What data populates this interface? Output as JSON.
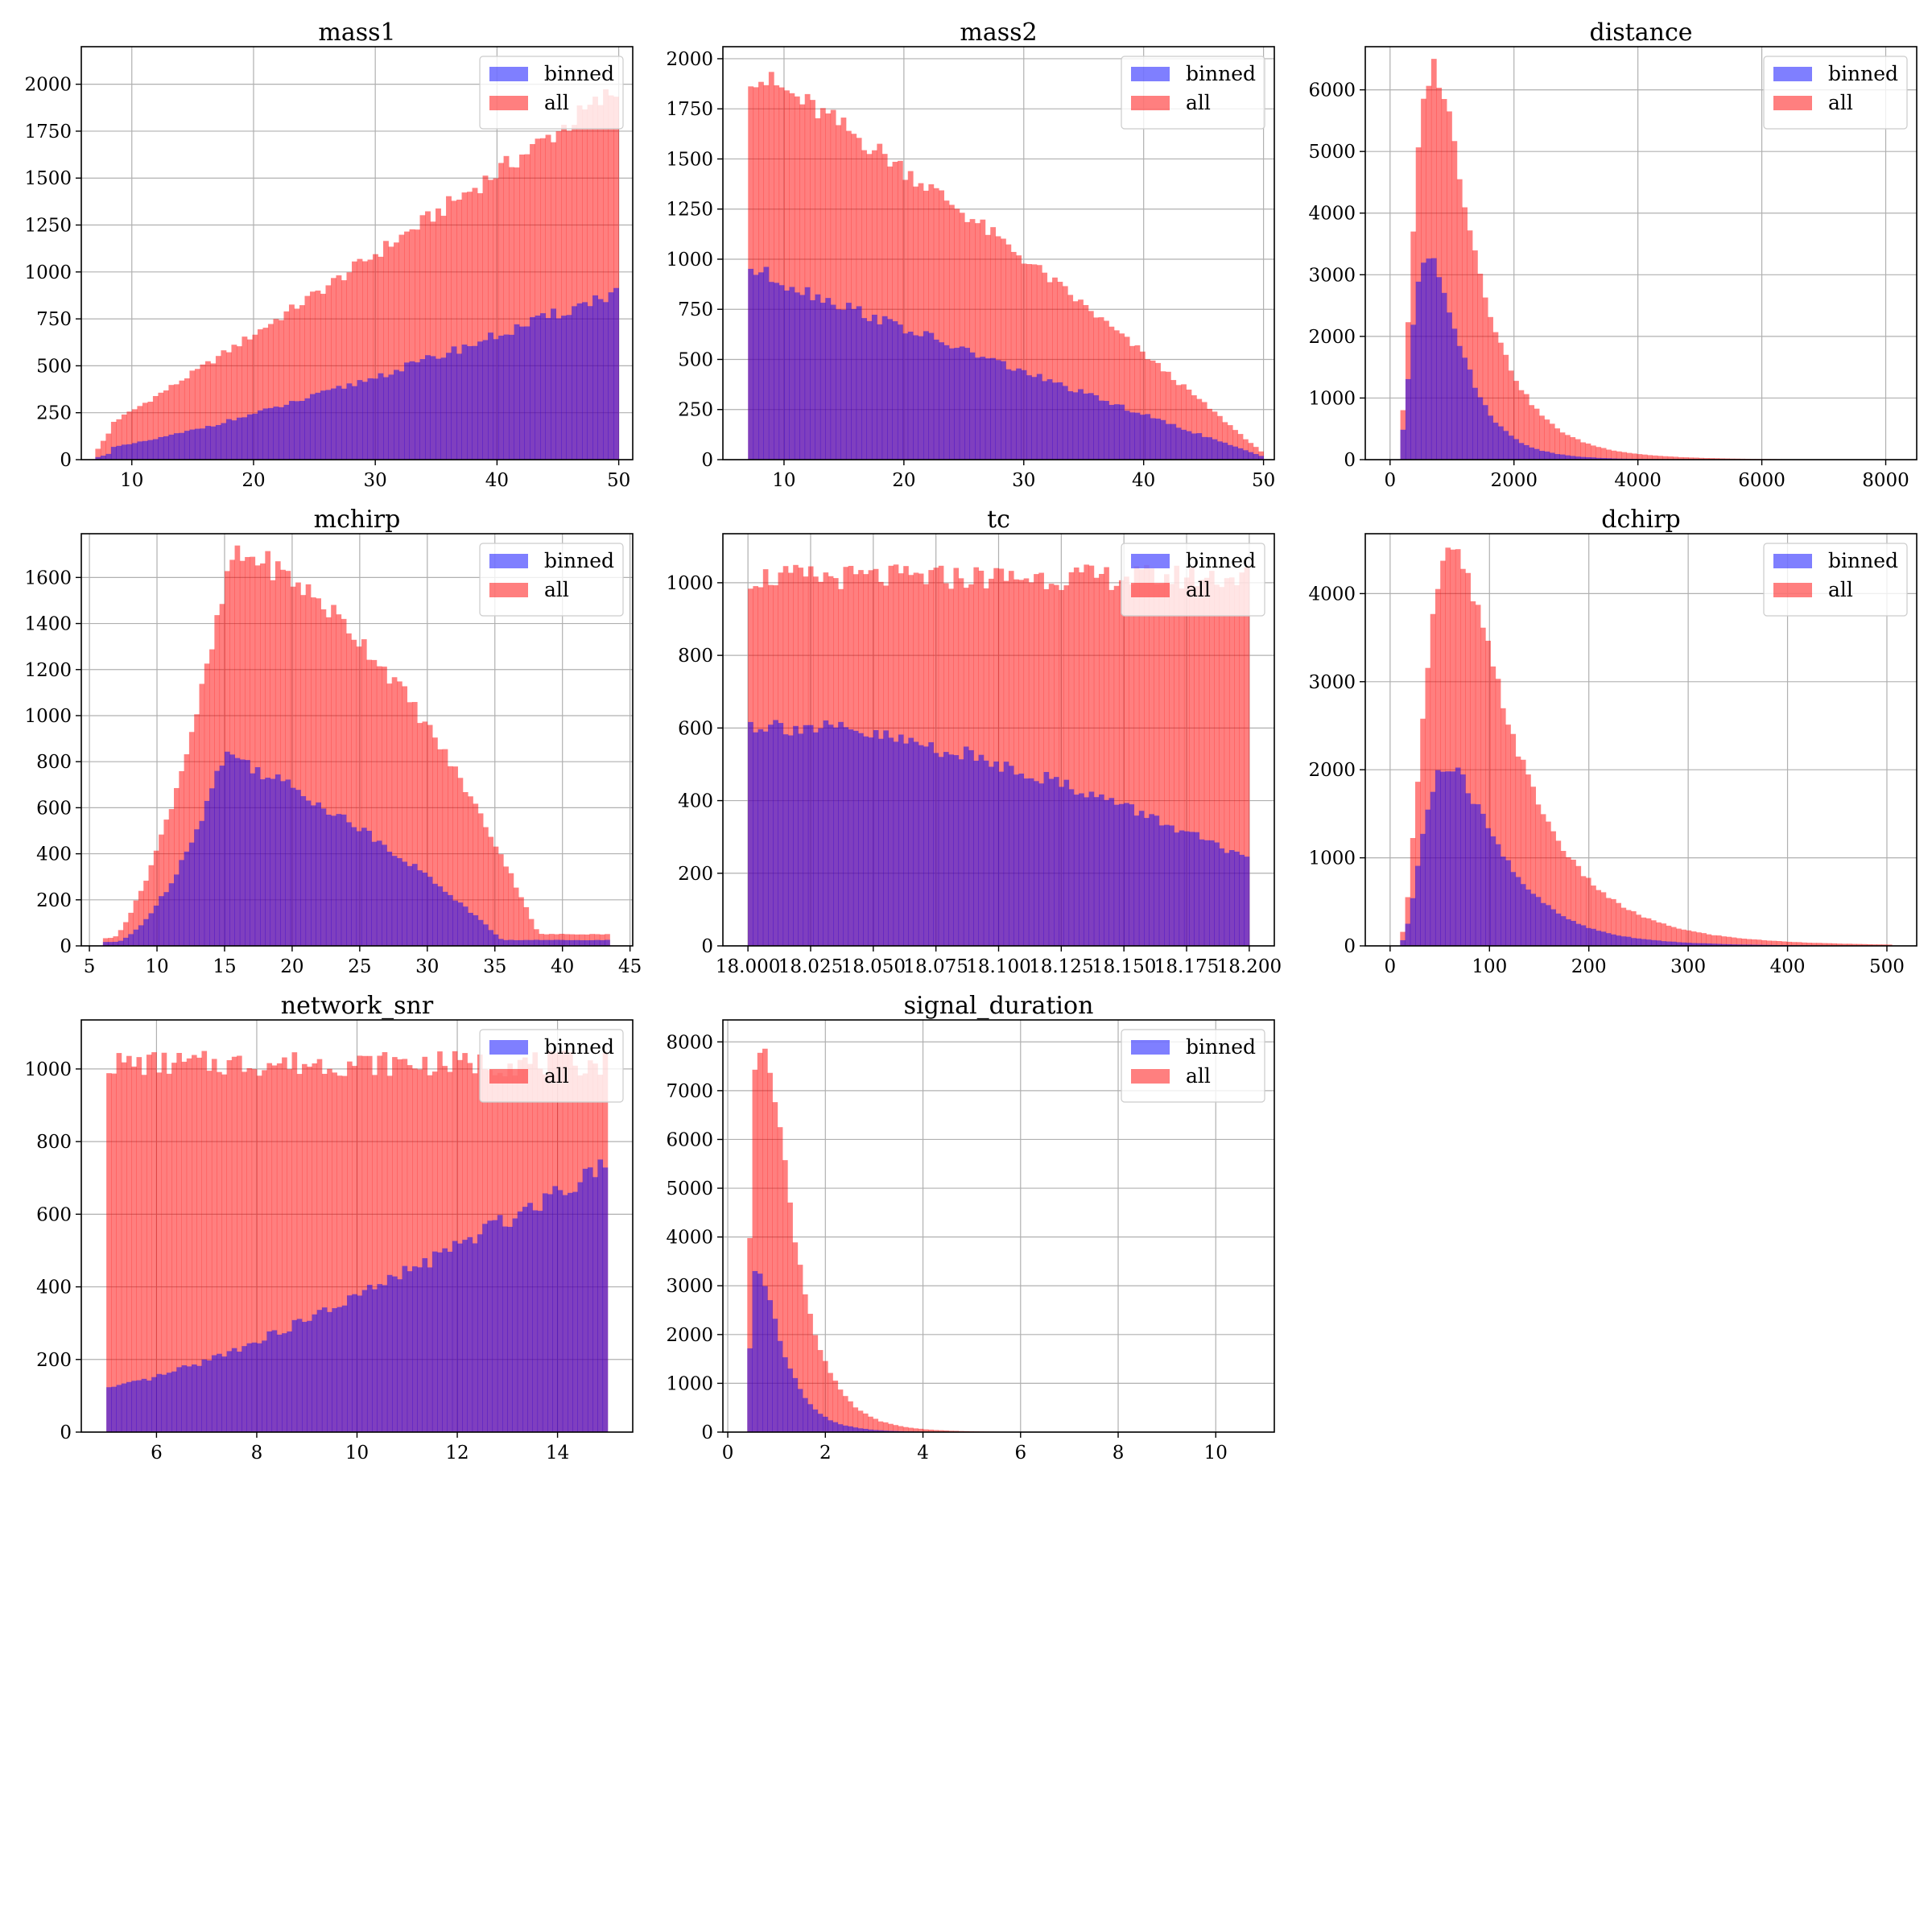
{
  "figure": {
    "legend_labels": [
      "binned",
      "all"
    ],
    "legend_placement": "upper-right",
    "grid": true,
    "colors": {
      "binned": "#0000ff",
      "all": "#ff0000",
      "overlap": "#c03c7c",
      "grid": "#b0b0b0",
      "axis": "#000000",
      "background": "#ffffff"
    },
    "bar_alpha": 0.5
  },
  "chart_data": [
    {
      "type": "histogram",
      "title": "mass1",
      "xlim": [
        5.85,
        51.15
      ],
      "ylim": [
        0,
        2200
      ],
      "xticks": [
        10,
        20,
        30,
        40,
        50
      ],
      "yticks": [
        0,
        250,
        500,
        750,
        1000,
        1250,
        1500,
        1750,
        2000
      ],
      "range": [
        7,
        50
      ],
      "shape": "mass1",
      "all_max": 1975,
      "binned_max": 900,
      "legend_placement": "upper-right"
    },
    {
      "type": "histogram",
      "title": "mass2",
      "xlim": [
        4.9,
        50.9
      ],
      "ylim": [
        0,
        2060
      ],
      "xticks": [
        10,
        20,
        30,
        40,
        50
      ],
      "yticks": [
        0,
        250,
        500,
        750,
        1000,
        1250,
        1500,
        1750,
        2000
      ],
      "range": [
        7,
        50
      ],
      "shape": "mass2",
      "all_max": 1930,
      "binned_max": 960,
      "legend_placement": "upper-right"
    },
    {
      "type": "histogram",
      "title": "distance",
      "xlim": [
        -400,
        8500
      ],
      "ylim": [
        0,
        6700
      ],
      "xticks": [
        0,
        2000,
        4000,
        6000,
        8000
      ],
      "yticks": [
        0,
        1000,
        2000,
        3000,
        4000,
        5000,
        6000
      ],
      "range": [
        0,
        8300
      ],
      "shape": "distance",
      "all_max": 6350,
      "binned_max": 3380,
      "legend_placement": "upper-right"
    },
    {
      "type": "histogram",
      "title": "mchirp",
      "xlim": [
        4.4,
        45.2
      ],
      "ylim": [
        0,
        1790
      ],
      "xticks": [
        5,
        10,
        15,
        20,
        25,
        30,
        35,
        40,
        45
      ],
      "yticks": [
        0,
        200,
        400,
        600,
        800,
        1000,
        1200,
        1400,
        1600
      ],
      "range": [
        6,
        43.5
      ],
      "shape": "mchirp",
      "all_max": 1700,
      "binned_max": 850,
      "legend_placement": "upper-right"
    },
    {
      "type": "histogram",
      "title": "tc",
      "xlim": [
        17.99,
        18.21
      ],
      "ylim": [
        0,
        1135
      ],
      "xticks": [
        18.0,
        18.025,
        18.05,
        18.075,
        18.1,
        18.125,
        18.15,
        18.175,
        18.2
      ],
      "xtick_labels": [
        "18.000",
        "18.025",
        "18.050",
        "18.075",
        "18.100",
        "18.125",
        "18.150",
        "18.175",
        "18.200"
      ],
      "yticks": [
        0,
        200,
        400,
        600,
        800,
        1000
      ],
      "range": [
        18.0,
        18.2
      ],
      "shape": "tc",
      "all_max": 1080,
      "binned_max": 610,
      "legend_placement": "upper-right"
    },
    {
      "type": "histogram",
      "title": "dchirp",
      "xlim": [
        -25,
        530
      ],
      "ylim": [
        0,
        4680
      ],
      "xticks": [
        0,
        100,
        200,
        300,
        400,
        500
      ],
      "yticks": [
        0,
        1000,
        2000,
        3000,
        4000
      ],
      "range": [
        0,
        505
      ],
      "shape": "dchirp",
      "all_max": 4440,
      "binned_max": 2030,
      "legend_placement": "upper-right"
    },
    {
      "type": "histogram",
      "title": "network_snr",
      "xlim": [
        4.5,
        15.5
      ],
      "ylim": [
        0,
        1135
      ],
      "xticks": [
        6,
        8,
        10,
        12,
        14
      ],
      "yticks": [
        0,
        200,
        400,
        600,
        800,
        1000
      ],
      "range": [
        5,
        15
      ],
      "shape": "network_snr",
      "all_max": 1080,
      "binned_max": 780,
      "legend_placement": "upper-right"
    },
    {
      "type": "histogram",
      "title": "signal_duration",
      "xlim": [
        -0.1,
        11.2
      ],
      "ylim": [
        0,
        8450
      ],
      "xticks": [
        0,
        2,
        4,
        6,
        8,
        10
      ],
      "yticks": [
        0,
        1000,
        2000,
        3000,
        4000,
        5000,
        6000,
        7000,
        8000
      ],
      "range": [
        0.4,
        10.7
      ],
      "shape": "signal_duration",
      "all_max": 8050,
      "binned_max": 3350,
      "legend_placement": "upper-right"
    }
  ]
}
